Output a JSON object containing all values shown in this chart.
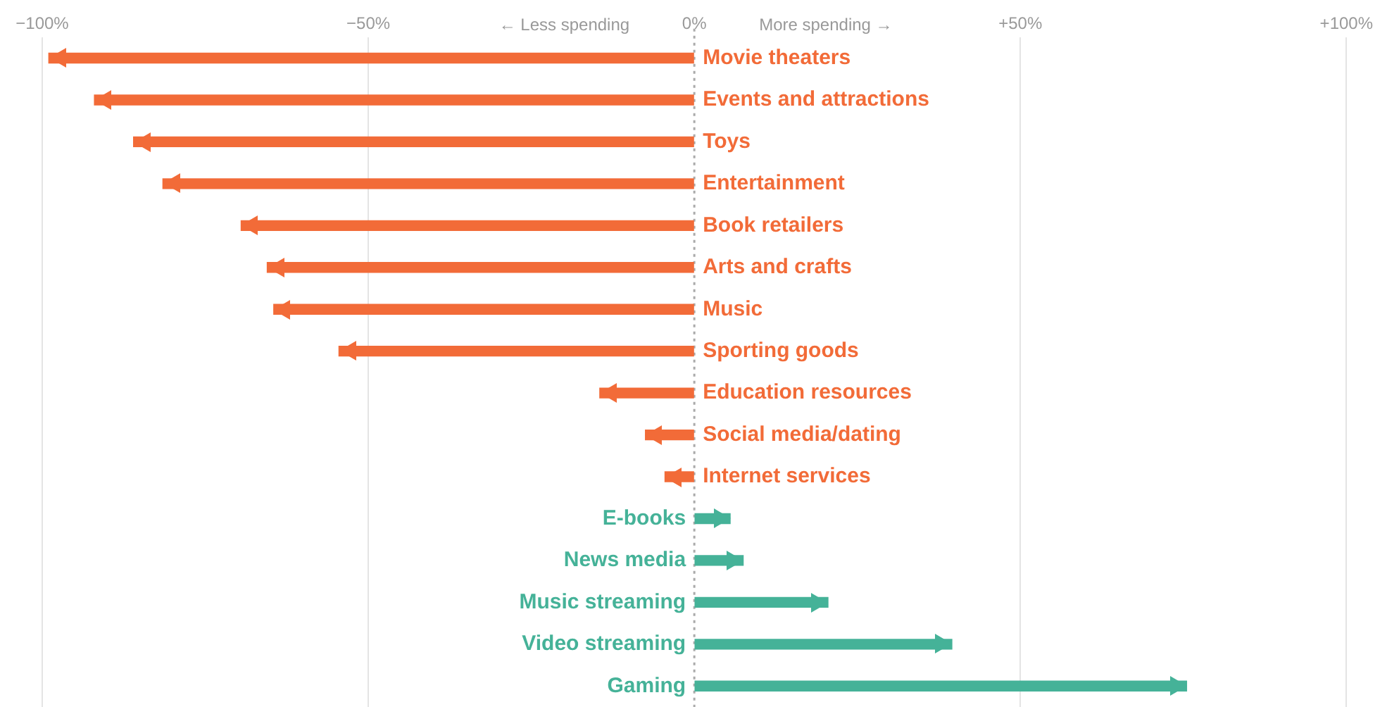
{
  "chart_data": {
    "type": "bar",
    "orientation": "horizontal",
    "categories": [
      "Movie theaters",
      "Events and attractions",
      "Toys",
      "Entertainment",
      "Book retailers",
      "Arts and crafts",
      "Music",
      "Sporting goods",
      "Education resources",
      "Social media/dating",
      "Internet services",
      "E-books",
      "News media",
      "Music streaming",
      "Video streaming",
      "Gaming"
    ],
    "values": [
      -99,
      -92,
      -86,
      -81.5,
      -69.5,
      -65.5,
      -64.5,
      -54.5,
      -14.5,
      -7.5,
      -4.5,
      5.5,
      7.5,
      20.5,
      39.5,
      75.5
    ],
    "colors": [
      "#f26b38",
      "#f26b38",
      "#f26b38",
      "#f26b38",
      "#f26b38",
      "#f26b38",
      "#f26b38",
      "#f26b38",
      "#f26b38",
      "#f26b38",
      "#f26b38",
      "#45b298",
      "#45b298",
      "#45b298",
      "#45b298",
      "#45b298"
    ],
    "xlim": [
      -100,
      100
    ],
    "xticks": [
      {
        "value": -100,
        "label": "−100%"
      },
      {
        "value": -50,
        "label": "−50%"
      },
      {
        "value": 0,
        "label": "0%"
      },
      {
        "value": 50,
        "label": "+50%"
      },
      {
        "value": 100,
        "label": "+100%"
      }
    ],
    "annotations": [
      "← Less spending",
      "More spending →"
    ],
    "ref_lines": [
      {
        "axis": "x",
        "value": 0,
        "line_style": "dotted",
        "color": "#aaaaaa"
      }
    ],
    "grid": "x",
    "legend": false
  }
}
